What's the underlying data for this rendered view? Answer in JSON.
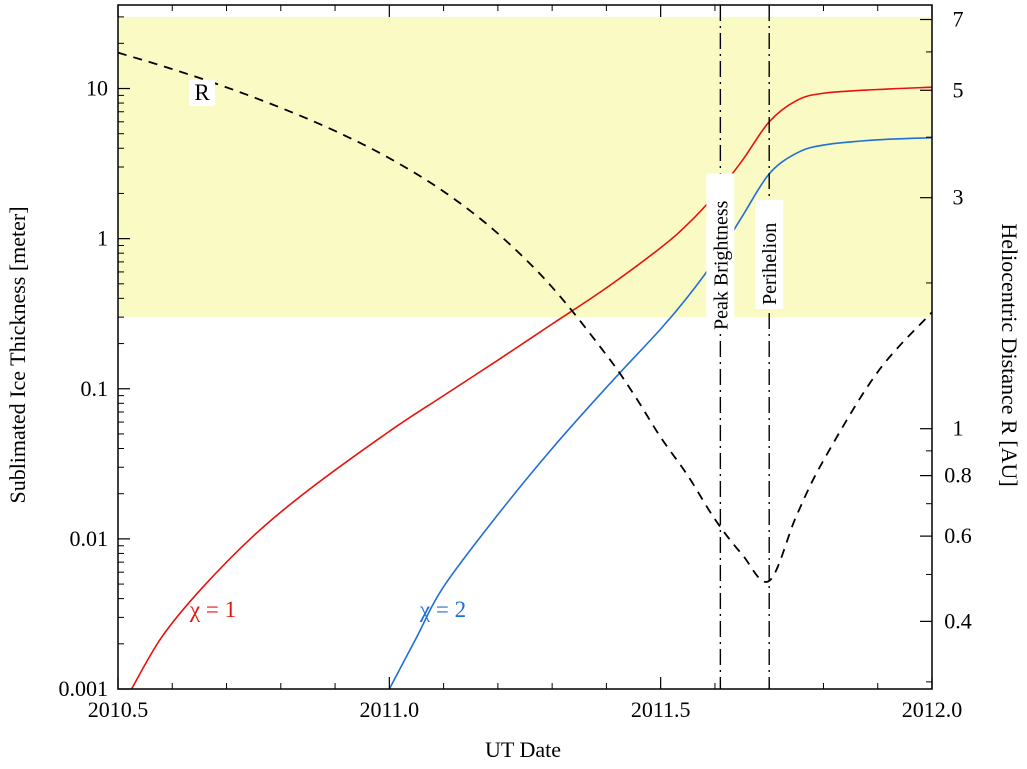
{
  "chart_data": {
    "type": "line",
    "xlabel": "UT Date",
    "ylabel_left": "Sublimated Ice Thickness  [meter]",
    "ylabel_right": "Heliocentric Distance R [AU]",
    "x_range": [
      2010.5,
      2012.0
    ],
    "y_left_range": [
      0.001,
      36
    ],
    "y_left_scale": "log",
    "y_right_range": [
      0.29,
      7.5
    ],
    "y_right_scale": "log",
    "x_ticks": [
      {
        "value": 2010.5,
        "label": "2010.5"
      },
      {
        "value": 2011.0,
        "label": "2011.0"
      },
      {
        "value": 2011.5,
        "label": "2011.5"
      },
      {
        "value": 2012.0,
        "label": "2012.0"
      }
    ],
    "y_left_ticks": [
      {
        "value": 10,
        "label": "10"
      },
      {
        "value": 1,
        "label": "1"
      },
      {
        "value": 0.1,
        "label": "0.1"
      },
      {
        "value": 0.01,
        "label": "0.01"
      },
      {
        "value": 0.001,
        "label": "0.001"
      }
    ],
    "y_right_ticks": [
      {
        "value": 7,
        "label": "7"
      },
      {
        "value": 5,
        "label": "5"
      },
      {
        "value": 3,
        "label": "3"
      },
      {
        "value": 1,
        "label": "1"
      },
      {
        "value": 0.8,
        "label": "0.8"
      },
      {
        "value": 0.6,
        "label": "0.6"
      },
      {
        "value": 0.4,
        "label": "0.4"
      }
    ],
    "shaded_band": {
      "y_from": 0.3,
      "y_to": 30,
      "color": "#fafac4"
    },
    "vertical_markers": [
      {
        "x": 2011.61,
        "label": "Peak Brightness"
      },
      {
        "x": 2011.7,
        "label": "Perihelion"
      }
    ],
    "series": [
      {
        "name": "χ = 1",
        "color": "#e8120c",
        "axis": "left",
        "style": "solid",
        "points": [
          [
            2010.525,
            0.001
          ],
          [
            2010.58,
            0.0022
          ],
          [
            2010.65,
            0.0045
          ],
          [
            2010.75,
            0.0105
          ],
          [
            2010.85,
            0.021
          ],
          [
            2011.0,
            0.052
          ],
          [
            2011.1,
            0.09
          ],
          [
            2011.2,
            0.155
          ],
          [
            2011.3,
            0.27
          ],
          [
            2011.4,
            0.47
          ],
          [
            2011.5,
            0.87
          ],
          [
            2011.55,
            1.25
          ],
          [
            2011.6,
            1.95
          ],
          [
            2011.65,
            3.3
          ],
          [
            2011.7,
            6.0
          ],
          [
            2011.75,
            8.3
          ],
          [
            2011.8,
            9.3
          ],
          [
            2011.9,
            9.85
          ],
          [
            2012.0,
            10.2
          ]
        ]
      },
      {
        "name": "χ = 2",
        "color": "#1f6fd8",
        "axis": "left",
        "style": "solid",
        "points": [
          [
            2011.0,
            0.001
          ],
          [
            2011.05,
            0.0022
          ],
          [
            2011.1,
            0.0048
          ],
          [
            2011.2,
            0.0145
          ],
          [
            2011.3,
            0.04
          ],
          [
            2011.4,
            0.102
          ],
          [
            2011.5,
            0.25
          ],
          [
            2011.55,
            0.41
          ],
          [
            2011.6,
            0.72
          ],
          [
            2011.65,
            1.4
          ],
          [
            2011.7,
            2.7
          ],
          [
            2011.75,
            3.7
          ],
          [
            2011.8,
            4.2
          ],
          [
            2011.9,
            4.55
          ],
          [
            2012.0,
            4.7
          ]
        ]
      },
      {
        "name": "R",
        "color": "#000000",
        "axis": "right",
        "style": "dashed",
        "points": [
          [
            2010.5,
            5.98
          ],
          [
            2010.6,
            5.53
          ],
          [
            2010.7,
            5.07
          ],
          [
            2010.8,
            4.6
          ],
          [
            2010.9,
            4.12
          ],
          [
            2011.0,
            3.62
          ],
          [
            2011.1,
            3.09
          ],
          [
            2011.2,
            2.53
          ],
          [
            2011.3,
            1.96
          ],
          [
            2011.4,
            1.42
          ],
          [
            2011.45,
            1.18
          ],
          [
            2011.5,
            0.96
          ],
          [
            2011.55,
            0.8
          ],
          [
            2011.6,
            0.65
          ],
          [
            2011.65,
            0.55
          ],
          [
            2011.7,
            0.485
          ],
          [
            2011.75,
            0.66
          ],
          [
            2011.8,
            0.86
          ],
          [
            2011.9,
            1.31
          ],
          [
            2012.0,
            1.74
          ]
        ]
      }
    ],
    "annotations": [
      {
        "text": "R",
        "series": "R",
        "x": 2010.665
      },
      {
        "text": "χ = 1",
        "series": "χ = 1",
        "x": 2010.65
      },
      {
        "text": "χ = 2",
        "series": "χ = 2",
        "x": 2011.1
      }
    ]
  }
}
